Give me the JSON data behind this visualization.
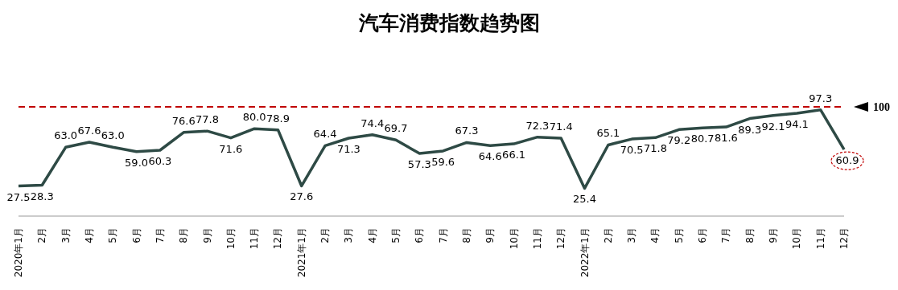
{
  "chart_data": {
    "type": "line",
    "title": "汽车消费指数趋势图",
    "categories": [
      "2020年1月",
      "2月",
      "3月",
      "4月",
      "5月",
      "6月",
      "7月",
      "8月",
      "9月",
      "10月",
      "11月",
      "12月",
      "2021年1月",
      "2月",
      "3月",
      "4月",
      "5月",
      "6月",
      "7月",
      "8月",
      "9月",
      "10月",
      "11月",
      "12月",
      "2022年1月",
      "2月",
      "3月",
      "4月",
      "5月",
      "6月",
      "7月",
      "8月",
      "9月",
      "10月",
      "11月",
      "12月"
    ],
    "series": [
      {
        "color": "#2e4a45",
        "values": [
          27.5,
          28.3,
          63.0,
          67.6,
          63.0,
          59.0,
          60.3,
          76.6,
          77.8,
          71.6,
          80.0,
          78.9,
          27.6,
          64.4,
          71.3,
          74.4,
          69.7,
          57.3,
          59.6,
          67.3,
          64.6,
          66.1,
          72.3,
          71.4,
          25.4,
          65.1,
          70.5,
          71.8,
          79.2,
          80.7,
          81.6,
          89.3,
          92.1,
          94.1,
          97.3,
          60.9
        ],
        "value_labels": [
          "27.5",
          "28.3",
          "63.0",
          "67.6",
          "63.0",
          "59.0",
          "60.3",
          "76.6",
          "77.8",
          "71.6",
          "80.0",
          "78.9",
          "27.6",
          "64.4",
          "71.3",
          "74.4",
          "69.7",
          "57.3",
          "59.6",
          "67.3",
          "64.6",
          "66.1",
          "72.3",
          "71.4",
          "25.4",
          "65.1",
          "70.5",
          "71.8",
          "79.2",
          "80.7",
          "81.6",
          "89.3",
          "92.1",
          "94.1",
          "97.3",
          "60.9"
        ]
      }
    ],
    "ref_lines": [
      {
        "axis": "y",
        "value": 100,
        "label": "100",
        "color": "#c00000",
        "line_style": "dashed"
      }
    ],
    "grid": false,
    "marker": "none",
    "line_style": "solid"
  }
}
